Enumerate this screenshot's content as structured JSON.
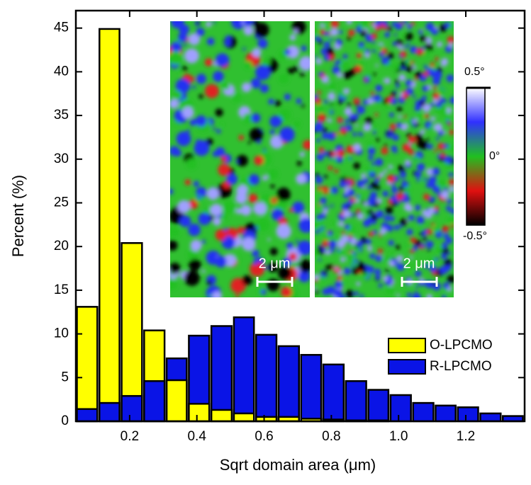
{
  "chart_data": {
    "type": "histogram",
    "x_label": "Sqrt domain area (μm)",
    "y_label": "Percent (%)",
    "bins": [
      0.04,
      0.107,
      0.173,
      0.24,
      0.307,
      0.373,
      0.44,
      0.507,
      0.573,
      0.64,
      0.707,
      0.773,
      0.84,
      0.907,
      0.973,
      1.04,
      1.107,
      1.173,
      1.24,
      1.307,
      1.373
    ],
    "series": [
      {
        "name": "O-LPCMO",
        "color": "#ffff00",
        "values": [
          13.1,
          44.9,
          20.4,
          10.4,
          4.7,
          2.0,
          1.3,
          0.9,
          0.5,
          0.5,
          0.3,
          0.2,
          0.1,
          0.1,
          0,
          0,
          0,
          0,
          0,
          0
        ]
      },
      {
        "name": "R-LPCMO",
        "color": "#0a14e6",
        "values": [
          1.4,
          2.1,
          2.9,
          4.6,
          7.2,
          9.8,
          10.9,
          11.9,
          9.9,
          8.6,
          7.6,
          6.5,
          4.6,
          3.6,
          3.0,
          2.1,
          1.8,
          1.6,
          0.9,
          0.6
        ]
      }
    ],
    "xlim": [
      0.04,
      1.375
    ],
    "ylim": [
      0,
      47
    ],
    "xticks": [
      0.2,
      0.4,
      0.6,
      0.8,
      1.0,
      1.2
    ],
    "yticks": [
      0,
      5,
      10,
      15,
      20,
      25,
      30,
      35,
      40,
      45
    ],
    "legend": "right",
    "inset_labels": {
      "scale_bar": [
        "2 μm",
        "2 μm"
      ],
      "colorbar_ticks": [
        "0.5°",
        "0°",
        "-0.5°"
      ]
    }
  }
}
